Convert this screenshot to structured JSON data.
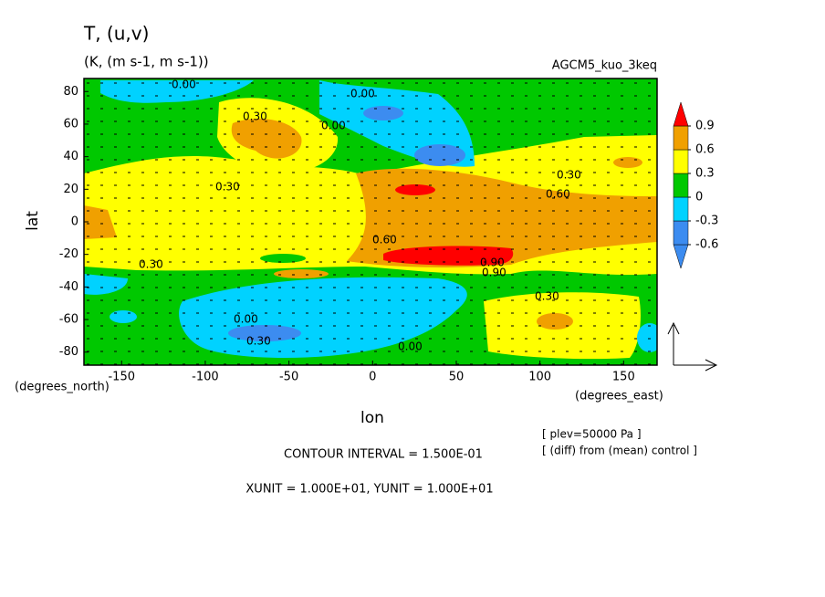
{
  "chart_data": {
    "type": "contour",
    "title": "T, (u,v)",
    "subtitle": "(K, (m s-1, m s-1))",
    "experiment": "AGCM5_kuo_3keq",
    "x_label": "lon",
    "y_label": "lat",
    "x_unit": "(degrees_east)",
    "y_unit": "(degrees_north)",
    "xlim": [
      -172.5,
      170
    ],
    "ylim": [
      -88,
      88
    ],
    "xticks": [
      -150,
      -100,
      -50,
      0,
      50,
      100,
      150
    ],
    "yticks": [
      -80,
      -60,
      -40,
      -20,
      0,
      20,
      40,
      60,
      80
    ],
    "colorbar": {
      "levels": [
        -0.6,
        -0.3,
        0,
        0.3,
        0.6,
        0.9
      ],
      "colors": [
        "#3c8cf0",
        "#3c8cf0",
        "#00d2ff",
        "#00c800",
        "#ffff00",
        "#f0a000",
        "#ff0000"
      ]
    },
    "contour_labels": [
      "0.00",
      "0.00",
      "0.30",
      "0.00",
      "0.30",
      "0.30",
      "0.60",
      "0.60",
      "0.30",
      "0.90",
      "0.90",
      "0.30",
      "0.00",
      "0.30",
      "0.00"
    ],
    "notes": [
      "CONTOUR INTERVAL = 1.500E-01",
      "XUNIT = 1.000E+01, YUNIT = 1.000E+01",
      "[ plev=50000 Pa ]",
      "[ (diff) from (mean) control ]"
    ]
  }
}
